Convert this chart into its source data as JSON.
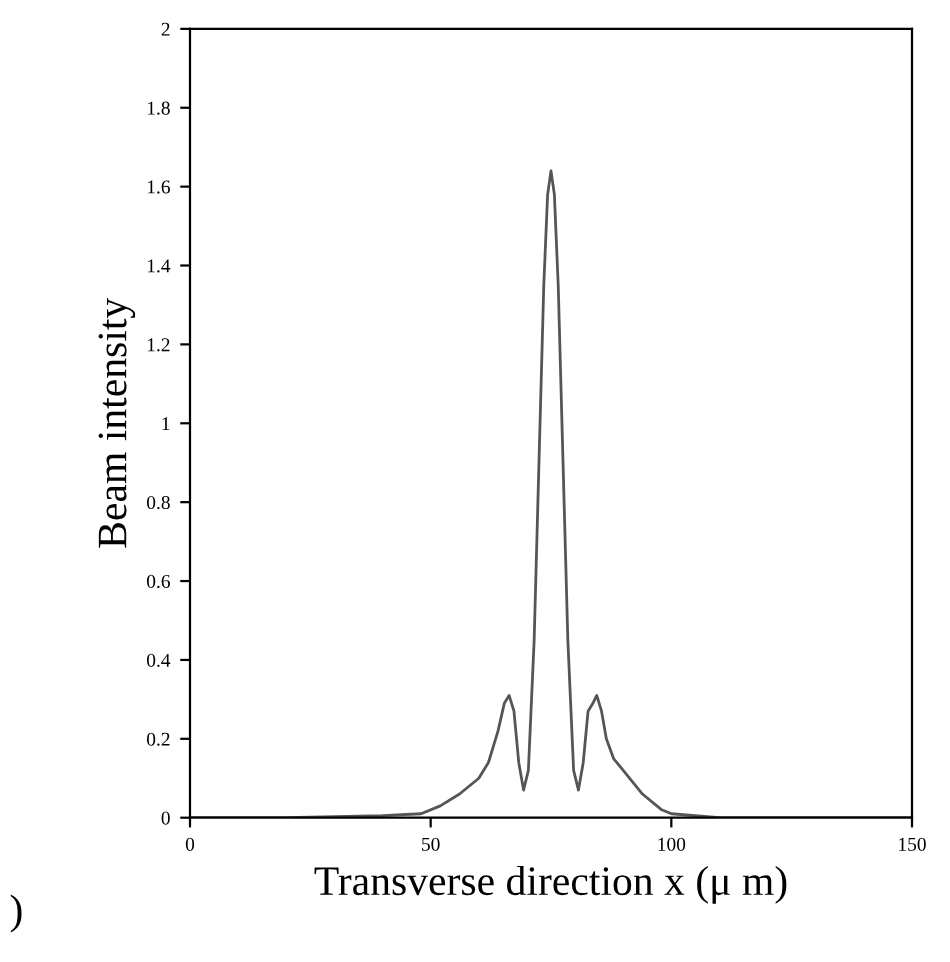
{
  "chart_data": {
    "type": "line",
    "xlabel": "Transverse direction x (μ m)",
    "ylabel": "Beam intensity",
    "annotations": [
      ")"
    ],
    "series": [
      {
        "color": "#555555",
        "x": [
          0,
          20,
          40,
          48,
          52,
          56,
          60,
          62,
          64,
          65.3,
          66.3,
          67.3,
          68.3,
          69.3,
          70.3,
          71.5,
          72.5,
          73.5,
          74.3,
          75,
          75.7,
          76.5,
          77.5,
          78.5,
          79.7,
          80.7,
          81.7,
          82.7,
          83.7,
          84.5,
          85.5,
          86.5,
          88,
          90,
          94,
          98,
          100,
          110,
          130,
          150
        ],
        "values": [
          0,
          0,
          0.005,
          0.01,
          0.03,
          0.06,
          0.1,
          0.14,
          0.22,
          0.29,
          0.31,
          0.27,
          0.14,
          0.07,
          0.12,
          0.45,
          0.9,
          1.35,
          1.58,
          1.64,
          1.58,
          1.35,
          0.9,
          0.45,
          0.12,
          0.07,
          0.14,
          0.27,
          0.29,
          0.31,
          0.27,
          0.2,
          0.15,
          0.12,
          0.06,
          0.02,
          0.01,
          0,
          0,
          0
        ]
      }
    ],
    "xlim": [
      0,
      150
    ],
    "ylim": [
      0,
      2
    ],
    "xticks": [
      0,
      50,
      100,
      150
    ],
    "yticks": [
      0,
      0.2,
      0.4,
      0.6,
      0.8,
      1,
      1.2,
      1.4,
      1.6,
      1.8,
      2
    ],
    "grid": false,
    "legend": false
  }
}
